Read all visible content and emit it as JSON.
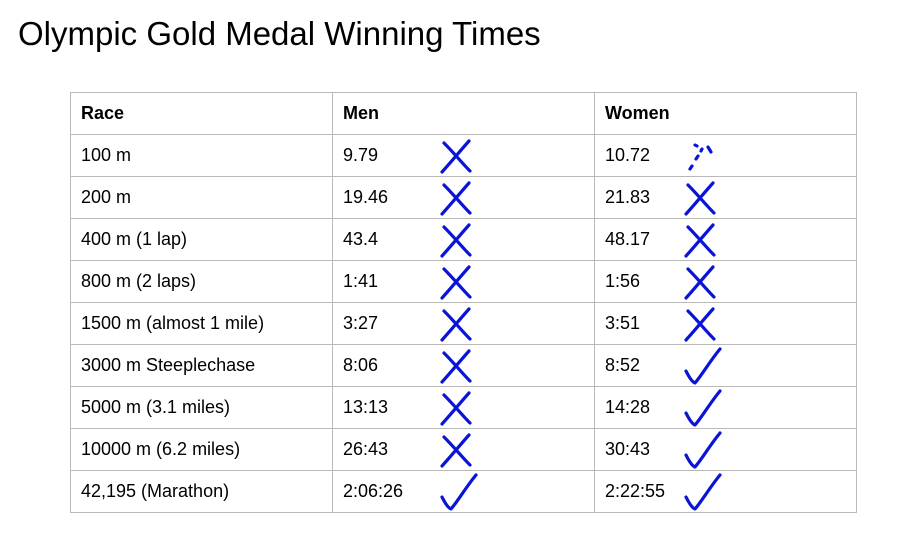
{
  "title": "Olympic Gold Medal Winning Times",
  "colors": {
    "ink": "#0a14d6",
    "border": "#b9b9b9"
  },
  "table": {
    "headers": [
      "Race",
      "Men",
      "Women"
    ],
    "rows": [
      {
        "race": "100 m",
        "men": "9.79",
        "women": "10.72",
        "men_mark": "cross",
        "women_mark": "dots"
      },
      {
        "race": "200 m",
        "men": "19.46",
        "women": "21.83",
        "men_mark": "cross",
        "women_mark": "cross"
      },
      {
        "race": "400 m (1 lap)",
        "men": "43.4",
        "women": "48.17",
        "men_mark": "cross",
        "women_mark": "cross"
      },
      {
        "race": "800 m (2 laps)",
        "men": "1:41",
        "women": "1:56",
        "men_mark": "cross",
        "women_mark": "cross"
      },
      {
        "race": "1500 m (almost 1 mile)",
        "men": "3:27",
        "women": "3:51",
        "men_mark": "cross",
        "women_mark": "cross"
      },
      {
        "race": "3000 m  Steeplechase",
        "men": "8:06",
        "women": "8:52",
        "men_mark": "cross",
        "women_mark": "check"
      },
      {
        "race": "5000 m (3.1 miles)",
        "men": "13:13",
        "women": "14:28",
        "men_mark": "cross",
        "women_mark": "check"
      },
      {
        "race": "10000 m (6.2 miles)",
        "men": "26:43",
        "women": "30:43",
        "men_mark": "cross",
        "women_mark": "check"
      },
      {
        "race": "42,195 (Marathon)",
        "men": "2:06:26",
        "women": "2:22:55",
        "men_mark": "check",
        "women_mark": "check"
      }
    ]
  }
}
